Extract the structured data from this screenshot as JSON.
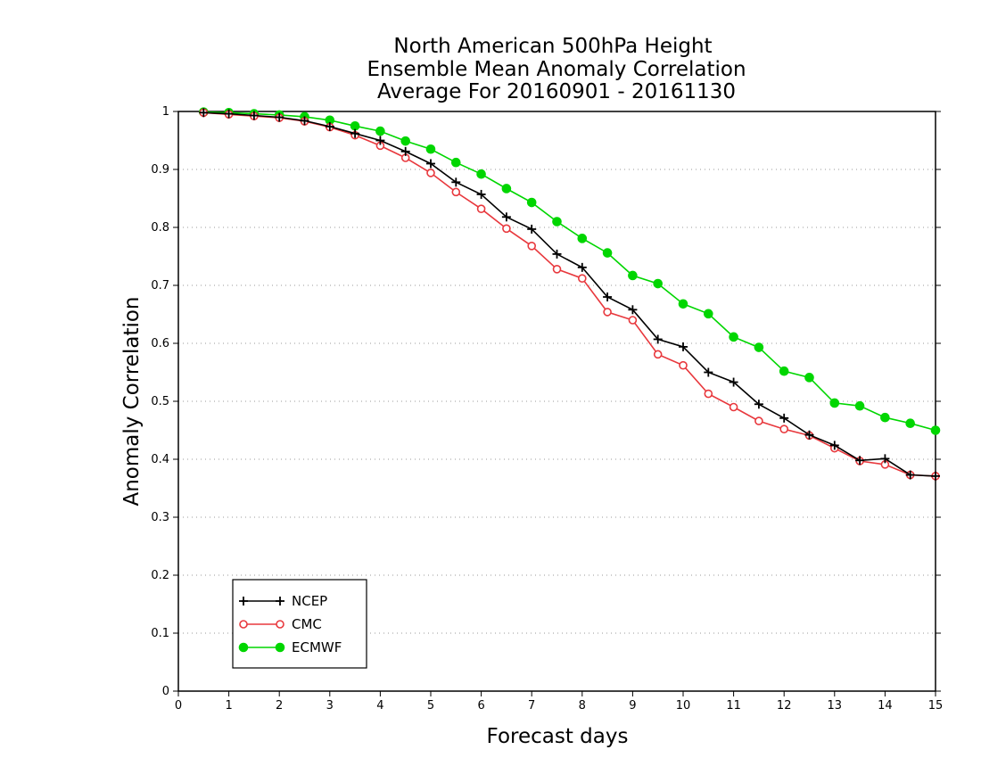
{
  "chart_data": {
    "type": "line",
    "title": [
      "North American 500hPa Height",
      "Ensemble Mean Anomaly Correlation",
      "Average For 20160901 - 20161130"
    ],
    "xlabel": "Forecast days",
    "ylabel": "Anomaly Correlation",
    "xlim": [
      0,
      15
    ],
    "ylim": [
      0,
      1
    ],
    "xticks": [
      0,
      1,
      2,
      3,
      4,
      5,
      6,
      7,
      8,
      9,
      10,
      11,
      12,
      13,
      14,
      15
    ],
    "yticks": [
      0,
      0.1,
      0.2,
      0.3,
      0.4,
      0.5,
      0.6,
      0.7,
      0.8,
      0.9,
      1
    ],
    "ytick_labels": [
      "0",
      "0.1",
      "0.2",
      "0.3",
      "0.4",
      "0.5",
      "0.6",
      "0.7",
      "0.8",
      "0.9",
      "1"
    ],
    "grid": "dotted-horizontal",
    "legend_position": "bottom-left",
    "x": [
      0.5,
      1,
      1.5,
      2,
      2.5,
      3,
      3.5,
      4,
      4.5,
      5,
      5.5,
      6,
      6.5,
      7,
      7.5,
      8,
      8.5,
      9,
      9.5,
      10,
      10.5,
      11,
      11.5,
      12,
      12.5,
      13,
      13.5,
      14,
      14.5,
      15
    ],
    "series": [
      {
        "name": "NCEP",
        "color": "#000000",
        "marker": "plus",
        "values": [
          0.998,
          0.996,
          0.993,
          0.99,
          0.984,
          0.974,
          0.962,
          0.95,
          0.931,
          0.91,
          0.878,
          0.857,
          0.818,
          0.797,
          0.754,
          0.731,
          0.68,
          0.658,
          0.607,
          0.594,
          0.55,
          0.533,
          0.495,
          0.471,
          0.442,
          0.424,
          0.398,
          0.401,
          0.373,
          0.371
        ]
      },
      {
        "name": "CMC",
        "color": "#e8383d",
        "marker": "open-circle",
        "values": [
          0.998,
          0.995,
          0.992,
          0.989,
          0.983,
          0.973,
          0.959,
          0.941,
          0.92,
          0.894,
          0.861,
          0.832,
          0.798,
          0.768,
          0.728,
          0.712,
          0.654,
          0.64,
          0.581,
          0.562,
          0.513,
          0.49,
          0.466,
          0.452,
          0.441,
          0.419,
          0.397,
          0.391,
          0.373,
          0.371
        ]
      },
      {
        "name": "ECMWF",
        "color": "#00d600",
        "marker": "filled-circle",
        "values": [
          0.999,
          0.998,
          0.996,
          0.994,
          0.991,
          0.985,
          0.975,
          0.966,
          0.949,
          0.935,
          0.912,
          0.892,
          0.867,
          0.843,
          0.81,
          0.781,
          0.756,
          0.717,
          0.703,
          0.668,
          0.651,
          0.611,
          0.593,
          0.552,
          0.541,
          0.497,
          0.492,
          0.472,
          0.462,
          0.45
        ]
      }
    ]
  }
}
